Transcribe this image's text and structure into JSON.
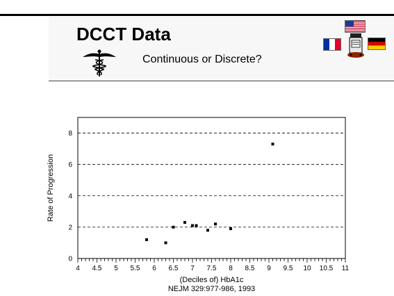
{
  "header": {
    "title": "DCCT Data",
    "subtitle": "Continuous or Discrete?"
  },
  "icons": [
    "caduceus-icon",
    "us-flag-icon",
    "french-flag-icon",
    "german-flag-icon",
    "medicine-bottle-icon"
  ],
  "colors": {
    "header_bg": "#f7f7f7",
    "marker": "#000000",
    "grid": "#000000"
  },
  "chart_data": {
    "type": "scatter",
    "xlabel": "(Deciles of) HbA1c",
    "ylabel": "Rate of Progression",
    "citation": "NEJM 329:977-986, 1993",
    "xlim": [
      4,
      11
    ],
    "ylim": [
      0,
      9
    ],
    "x_ticks": [
      "4",
      "4.5",
      "5",
      "5.5",
      "6",
      "6.5",
      "7",
      "7.5",
      "8",
      "8.5",
      "9",
      "9.5",
      "10",
      "10.5",
      "11"
    ],
    "y_ticks": [
      "0",
      "2",
      "4",
      "6",
      "8"
    ],
    "grid": "horizontal dashed at 2, 4, 6, 8",
    "points": [
      {
        "x": 5.8,
        "y": 1.2
      },
      {
        "x": 6.3,
        "y": 1.0
      },
      {
        "x": 6.5,
        "y": 2.0
      },
      {
        "x": 6.8,
        "y": 2.3
      },
      {
        "x": 7.0,
        "y": 2.1
      },
      {
        "x": 7.1,
        "y": 2.1
      },
      {
        "x": 7.4,
        "y": 1.8
      },
      {
        "x": 7.6,
        "y": 2.2
      },
      {
        "x": 8.0,
        "y": 1.9
      },
      {
        "x": 9.1,
        "y": 7.3
      }
    ]
  }
}
